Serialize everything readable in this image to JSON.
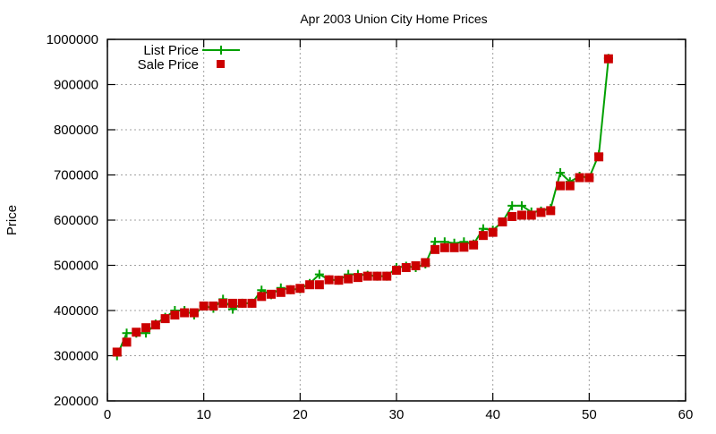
{
  "chart_data": {
    "type": "line",
    "title": "Apr 2003 Union City Home Prices",
    "xlabel": "",
    "ylabel": "Price",
    "xlim": [
      0,
      60
    ],
    "ylim": [
      200000,
      1000000
    ],
    "xticks": [
      0,
      10,
      20,
      30,
      40,
      50,
      60
    ],
    "yticks": [
      200000,
      300000,
      400000,
      500000,
      600000,
      700000,
      800000,
      900000,
      1000000
    ],
    "grid": true,
    "legend_position": "top-left",
    "x": [
      1,
      2,
      3,
      4,
      5,
      6,
      7,
      8,
      9,
      10,
      11,
      12,
      13,
      14,
      15,
      16,
      17,
      18,
      19,
      20,
      21,
      22,
      23,
      24,
      25,
      26,
      27,
      28,
      29,
      30,
      31,
      32,
      33,
      34,
      35,
      36,
      37,
      38,
      39,
      40,
      41,
      42,
      43,
      44,
      45,
      46,
      47,
      48,
      49,
      50,
      51,
      52
    ],
    "series": [
      {
        "name": "List Price",
        "style": "linespoints",
        "marker": "plus",
        "color": "#00a000",
        "values": [
          300000,
          350000,
          350000,
          350000,
          370000,
          385000,
          400000,
          400000,
          390000,
          410000,
          405000,
          425000,
          403000,
          416000,
          416000,
          445000,
          435000,
          450000,
          446000,
          448000,
          460000,
          480000,
          468000,
          467000,
          480000,
          480000,
          478000,
          476000,
          476000,
          495000,
          498000,
          495000,
          503000,
          552000,
          552000,
          549000,
          552000,
          547000,
          581000,
          578000,
          596000,
          632000,
          632000,
          618000,
          620000,
          626000,
          705000,
          685000,
          697000,
          694000,
          745000,
          958000
        ]
      },
      {
        "name": "Sale Price",
        "style": "points",
        "marker": "square",
        "color": "#cc0000",
        "values": [
          308000,
          330000,
          352000,
          362000,
          368000,
          382000,
          390000,
          395000,
          395000,
          410000,
          410000,
          416000,
          416000,
          416000,
          416000,
          431000,
          436000,
          440000,
          446000,
          449000,
          457000,
          457000,
          468000,
          467000,
          470000,
          473000,
          476000,
          476000,
          476000,
          489000,
          495000,
          499000,
          506000,
          535000,
          539000,
          539000,
          540000,
          545000,
          566000,
          573000,
          596000,
          608000,
          611000,
          611000,
          617000,
          621000,
          676000,
          676000,
          694000,
          694000,
          740000,
          957000
        ]
      }
    ]
  },
  "legend": {
    "items": [
      {
        "label": "List Price"
      },
      {
        "label": "Sale Price"
      }
    ]
  },
  "colors": {
    "list_line": "#00a000",
    "sale_marker": "#cc0000",
    "grid": "#a0a0a0",
    "axis": "#000000"
  }
}
